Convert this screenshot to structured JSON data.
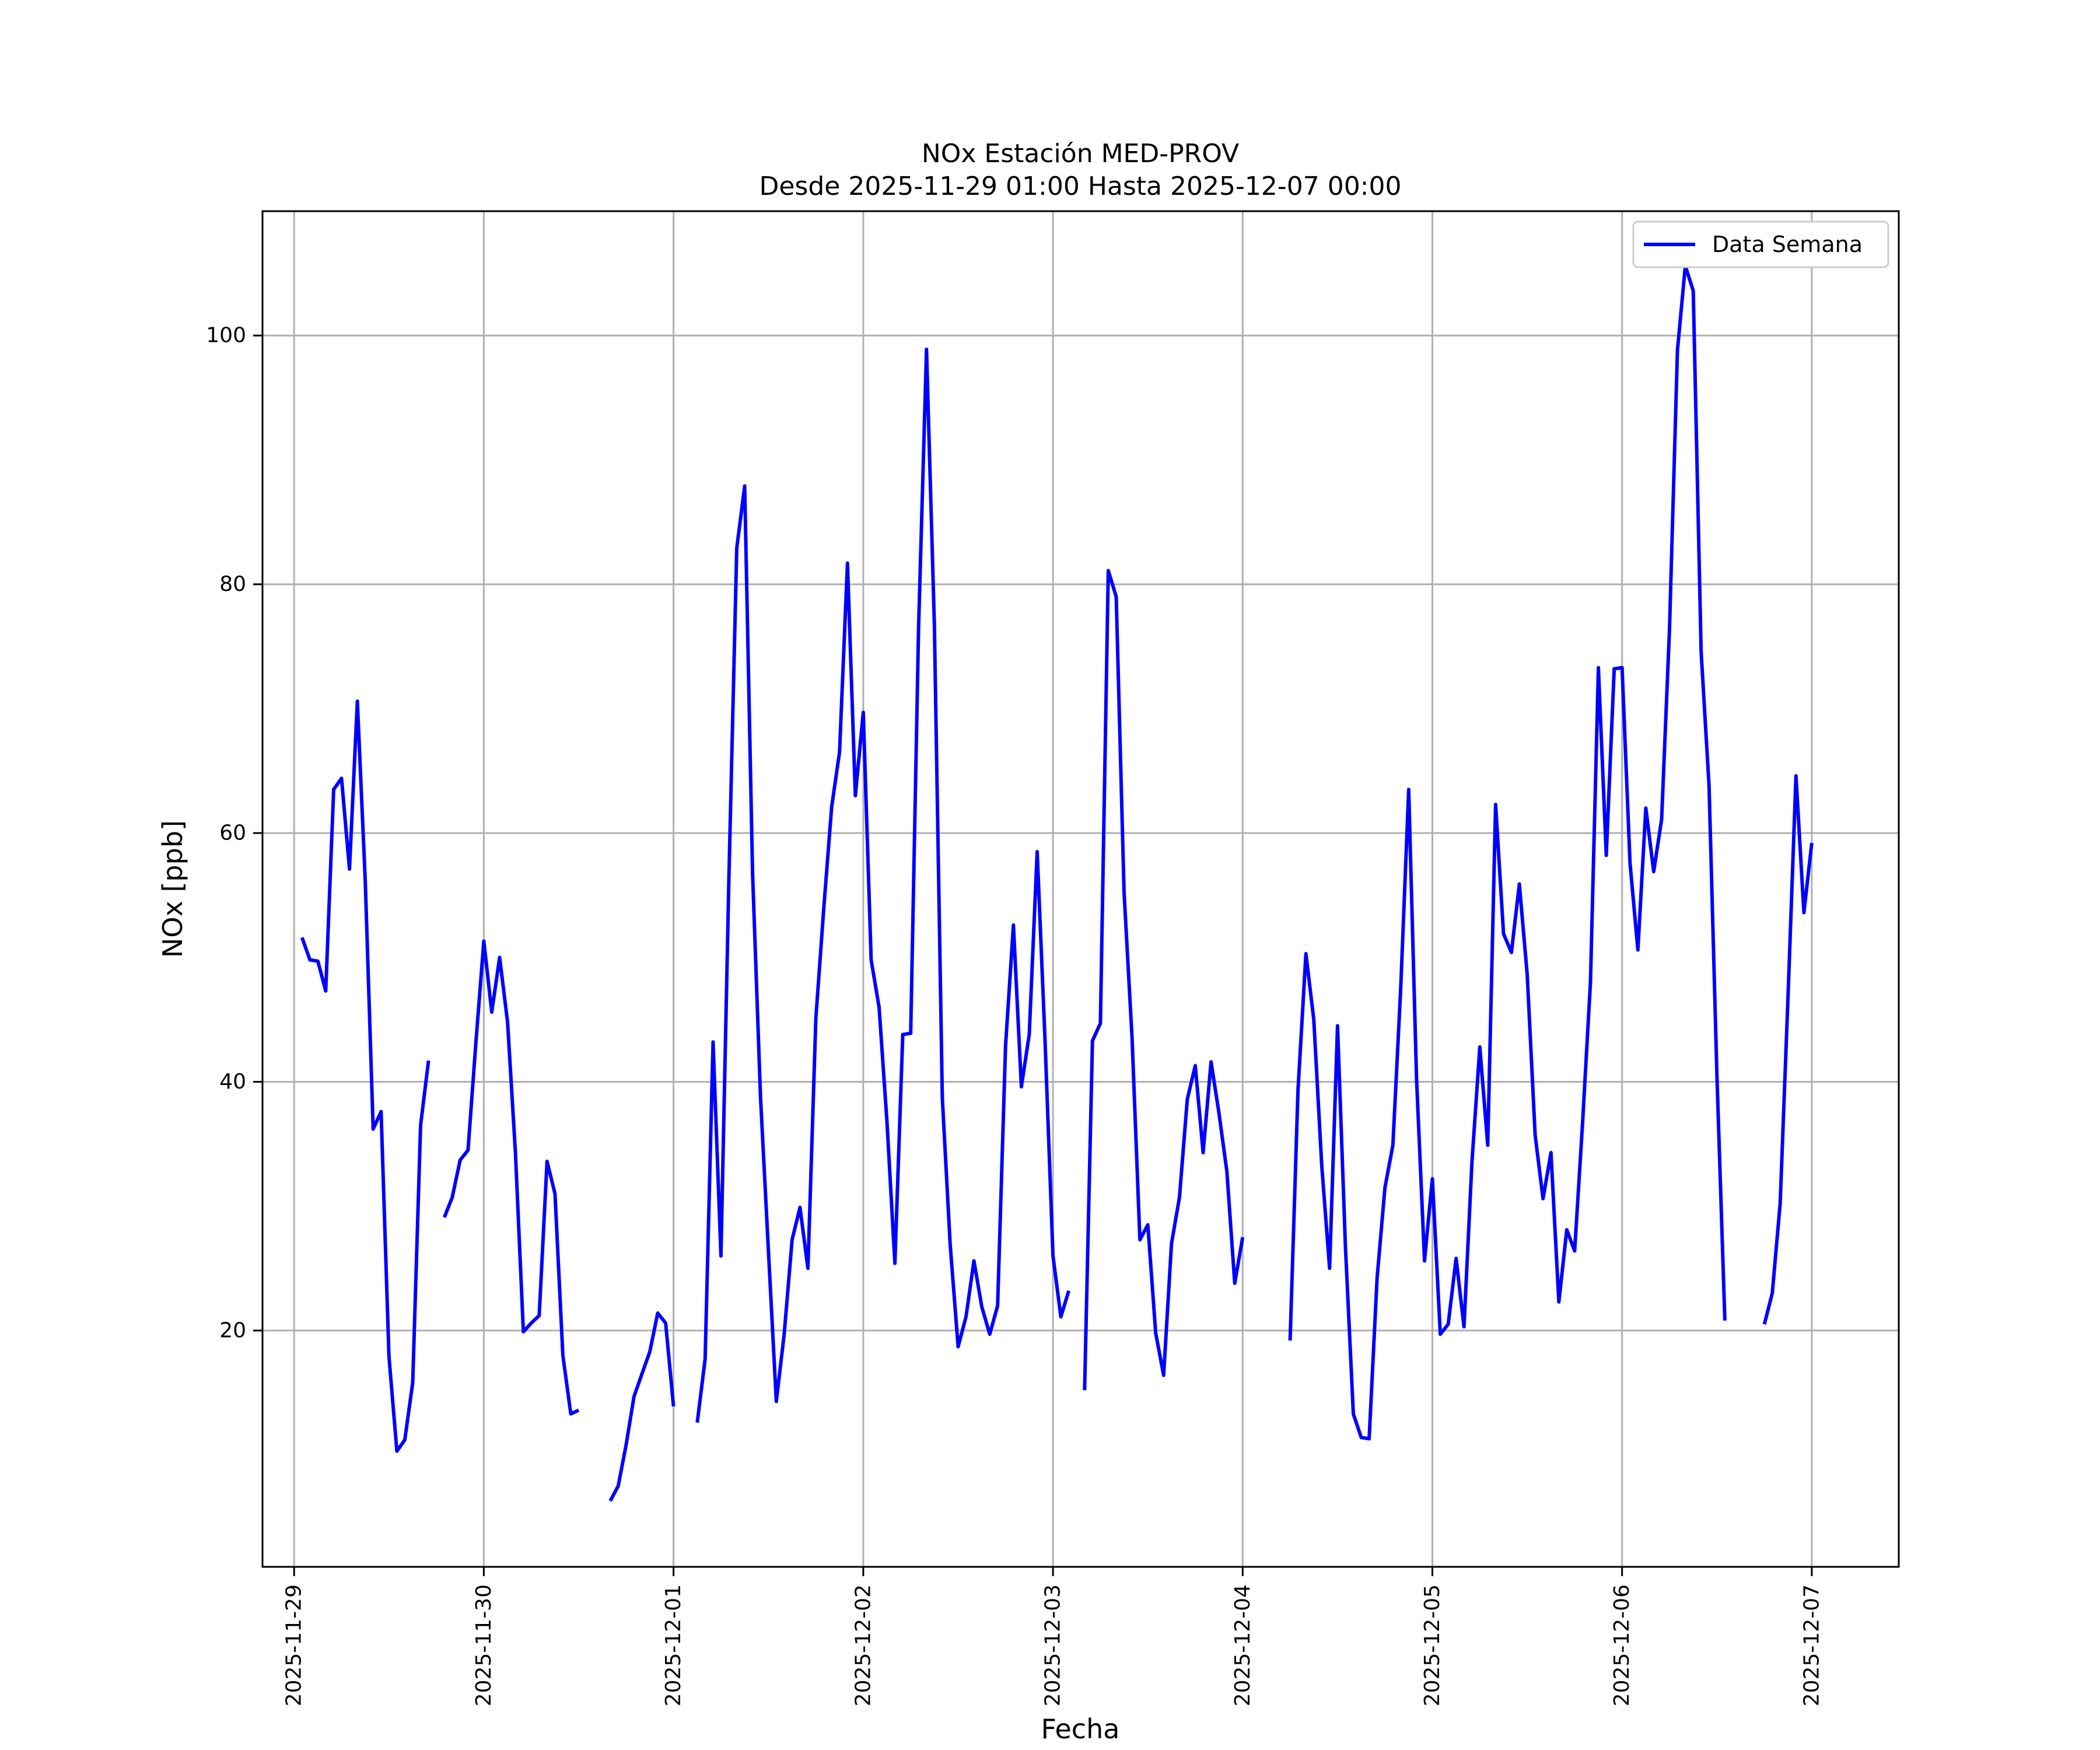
{
  "chart_data": {
    "type": "line",
    "title": "NOx Estación MED-PROV",
    "subtitle": "Desde 2025-11-29 01:00 Hasta 2025-12-07 00:00",
    "xlabel": "Fecha",
    "ylabel": "NOx [ppb]",
    "xlim": [
      "2025-11-28 20:00",
      "2025-12-07 11:00"
    ],
    "ylim": [
      1,
      110
    ],
    "x_ticks": [
      "2025-11-29",
      "2025-11-30",
      "2025-12-01",
      "2025-12-02",
      "2025-12-03",
      "2025-12-04",
      "2025-12-05",
      "2025-12-06",
      "2025-12-07"
    ],
    "y_ticks": [
      20,
      40,
      60,
      80,
      100
    ],
    "grid": true,
    "legend_position": "top-right",
    "colors": {
      "series": "#0000ff"
    },
    "series": [
      {
        "name": "Data Semana",
        "segments": [
          [
            [
              "2025-11-29 01:00",
              51.6
            ],
            [
              "2025-11-29 02:00",
              49.8
            ],
            [
              "2025-11-29 03:00",
              49.7
            ],
            [
              "2025-11-29 04:00",
              47.3
            ],
            [
              "2025-11-29 05:00",
              63.5
            ],
            [
              "2025-11-29 06:00",
              64.4
            ],
            [
              "2025-11-29 07:00",
              57.1
            ],
            [
              "2025-11-29 08:00",
              70.6
            ],
            [
              "2025-11-29 09:00",
              56.1
            ],
            [
              "2025-11-29 10:00",
              36.2
            ],
            [
              "2025-11-29 11:00",
              37.6
            ],
            [
              "2025-11-29 12:00",
              17.9
            ],
            [
              "2025-11-29 13:00",
              10.3
            ],
            [
              "2025-11-29 14:00",
              11.2
            ],
            [
              "2025-11-29 15:00",
              15.8
            ],
            [
              "2025-11-29 16:00",
              36.5
            ],
            [
              "2025-11-29 17:00",
              41.7
            ]
          ],
          [
            [
              "2025-11-29 19:00",
              29.1
            ],
            [
              "2025-11-29 20:00",
              30.7
            ],
            [
              "2025-11-29 21:00",
              33.7
            ],
            [
              "2025-11-29 22:00",
              34.5
            ],
            [
              "2025-11-29 23:00",
              43.2
            ],
            [
              "2025-11-30 00:00",
              51.3
            ],
            [
              "2025-11-30 01:00",
              45.6
            ],
            [
              "2025-11-30 02:00",
              50.0
            ],
            [
              "2025-11-30 03:00",
              44.8
            ],
            [
              "2025-11-30 04:00",
              34.3
            ],
            [
              "2025-11-30 05:00",
              19.9
            ],
            [
              "2025-11-30 06:00",
              20.6
            ],
            [
              "2025-11-30 07:00",
              21.2
            ],
            [
              "2025-11-30 08:00",
              33.6
            ],
            [
              "2025-11-30 09:00",
              31.0
            ],
            [
              "2025-11-30 10:00",
              18.0
            ],
            [
              "2025-11-30 11:00",
              13.3
            ],
            [
              "2025-11-30 12:00",
              13.6
            ]
          ],
          [
            [
              "2025-11-30 16:00",
              6.3
            ],
            [
              "2025-11-30 17:00",
              7.5
            ],
            [
              "2025-11-30 18:00",
              10.8
            ],
            [
              "2025-11-30 19:00",
              14.7
            ],
            [
              "2025-11-30 20:00",
              16.5
            ],
            [
              "2025-11-30 21:00",
              18.3
            ],
            [
              "2025-11-30 22:00",
              21.4
            ],
            [
              "2025-11-30 23:00",
              20.6
            ],
            [
              "2025-12-01 00:00",
              13.9
            ]
          ],
          [
            [
              "2025-12-01 03:00",
              12.6
            ],
            [
              "2025-12-01 04:00",
              17.7
            ],
            [
              "2025-12-01 05:00",
              43.2
            ],
            [
              "2025-12-01 06:00",
              26.0
            ],
            [
              "2025-12-01 07:00",
              56.3
            ],
            [
              "2025-12-01 08:00",
              82.9
            ],
            [
              "2025-12-01 09:00",
              87.9
            ],
            [
              "2025-12-01 10:00",
              56.8
            ],
            [
              "2025-12-01 11:00",
              38.8
            ],
            [
              "2025-12-01 12:00",
              26.5
            ],
            [
              "2025-12-01 13:00",
              14.3
            ],
            [
              "2025-12-01 14:00",
              19.7
            ],
            [
              "2025-12-01 15:00",
              27.3
            ],
            [
              "2025-12-01 16:00",
              29.9
            ],
            [
              "2025-12-01 17:00",
              25.0
            ],
            [
              "2025-12-01 18:00",
              45.1
            ],
            [
              "2025-12-01 19:00",
              53.9
            ],
            [
              "2025-12-01 20:00",
              62.1
            ],
            [
              "2025-12-01 21:00",
              66.5
            ],
            [
              "2025-12-01 22:00",
              81.7
            ],
            [
              "2025-12-01 23:00",
              63.0
            ],
            [
              "2025-12-02 00:00",
              69.7
            ],
            [
              "2025-12-02 01:00",
              49.8
            ],
            [
              "2025-12-02 02:00",
              46.0
            ],
            [
              "2025-12-02 03:00",
              36.8
            ],
            [
              "2025-12-02 04:00",
              25.4
            ],
            [
              "2025-12-02 05:00",
              43.8
            ],
            [
              "2025-12-02 06:00",
              43.9
            ],
            [
              "2025-12-02 07:00",
              76.5
            ],
            [
              "2025-12-02 08:00",
              98.9
            ],
            [
              "2025-12-02 09:00",
              76.7
            ],
            [
              "2025-12-02 10:00",
              38.7
            ],
            [
              "2025-12-02 11:00",
              26.9
            ],
            [
              "2025-12-02 12:00",
              18.7
            ],
            [
              "2025-12-02 13:00",
              21.1
            ],
            [
              "2025-12-02 14:00",
              25.6
            ],
            [
              "2025-12-02 15:00",
              21.9
            ],
            [
              "2025-12-02 16:00",
              19.7
            ],
            [
              "2025-12-02 17:00",
              22.0
            ],
            [
              "2025-12-02 18:00",
              42.9
            ],
            [
              "2025-12-02 19:00",
              52.6
            ],
            [
              "2025-12-02 20:00",
              39.6
            ],
            [
              "2025-12-02 21:00",
              43.8
            ],
            [
              "2025-12-02 22:00",
              58.5
            ],
            [
              "2025-12-02 23:00",
              43.3
            ],
            [
              "2025-12-03 00:00",
              26.0
            ],
            [
              "2025-12-03 01:00",
              21.1
            ],
            [
              "2025-12-03 02:00",
              23.2
            ]
          ],
          [
            [
              "2025-12-03 04:00",
              15.2
            ],
            [
              "2025-12-03 05:00",
              43.3
            ],
            [
              "2025-12-03 06:00",
              44.7
            ],
            [
              "2025-12-03 07:00",
              81.1
            ],
            [
              "2025-12-03 08:00",
              79.0
            ],
            [
              "2025-12-03 09:00",
              55.2
            ],
            [
              "2025-12-03 10:00",
              43.6
            ],
            [
              "2025-12-03 11:00",
              27.3
            ],
            [
              "2025-12-03 12:00",
              28.5
            ],
            [
              "2025-12-03 13:00",
              19.8
            ],
            [
              "2025-12-03 14:00",
              16.4
            ],
            [
              "2025-12-03 15:00",
              27.0
            ],
            [
              "2025-12-03 16:00",
              30.7
            ],
            [
              "2025-12-03 17:00",
              38.6
            ],
            [
              "2025-12-03 18:00",
              41.3
            ],
            [
              "2025-12-03 19:00",
              34.3
            ],
            [
              "2025-12-03 20:00",
              41.6
            ],
            [
              "2025-12-03 21:00",
              37.5
            ],
            [
              "2025-12-03 22:00",
              32.8
            ],
            [
              "2025-12-03 23:00",
              23.8
            ],
            [
              "2025-12-04 00:00",
              27.5
            ]
          ],
          [
            [
              "2025-12-04 06:00",
              19.2
            ],
            [
              "2025-12-04 07:00",
              39.3
            ],
            [
              "2025-12-04 08:00",
              50.3
            ],
            [
              "2025-12-04 09:00",
              45.0
            ],
            [
              "2025-12-04 10:00",
              33.3
            ],
            [
              "2025-12-04 11:00",
              25.0
            ],
            [
              "2025-12-04 12:00",
              44.5
            ],
            [
              "2025-12-04 13:00",
              26.8
            ],
            [
              "2025-12-04 14:00",
              13.3
            ],
            [
              "2025-12-04 15:00",
              11.4
            ],
            [
              "2025-12-04 16:00",
              11.3
            ],
            [
              "2025-12-04 17:00",
              24.2
            ],
            [
              "2025-12-04 18:00",
              31.5
            ],
            [
              "2025-12-04 19:00",
              34.9
            ],
            [
              "2025-12-04 20:00",
              47.6
            ],
            [
              "2025-12-04 21:00",
              63.5
            ],
            [
              "2025-12-04 22:00",
              40.2
            ],
            [
              "2025-12-04 23:00",
              25.6
            ],
            [
              "2025-12-05 00:00",
              32.2
            ],
            [
              "2025-12-05 01:00",
              19.7
            ],
            [
              "2025-12-05 02:00",
              20.5
            ],
            [
              "2025-12-05 03:00",
              25.8
            ],
            [
              "2025-12-05 04:00",
              20.3
            ],
            [
              "2025-12-05 05:00",
              33.5
            ],
            [
              "2025-12-05 06:00",
              42.8
            ],
            [
              "2025-12-05 07:00",
              34.9
            ],
            [
              "2025-12-05 08:00",
              62.3
            ],
            [
              "2025-12-05 09:00",
              51.9
            ],
            [
              "2025-12-05 10:00",
              50.4
            ],
            [
              "2025-12-05 11:00",
              55.9
            ],
            [
              "2025-12-05 12:00",
              48.6
            ],
            [
              "2025-12-05 13:00",
              35.7
            ],
            [
              "2025-12-05 14:00",
              30.6
            ],
            [
              "2025-12-05 15:00",
              34.3
            ],
            [
              "2025-12-05 16:00",
              22.3
            ],
            [
              "2025-12-05 17:00",
              28.1
            ],
            [
              "2025-12-05 18:00",
              26.4
            ],
            [
              "2025-12-05 19:00",
              36.7
            ],
            [
              "2025-12-05 20:00",
              48.0
            ],
            [
              "2025-12-05 21:00",
              73.3
            ],
            [
              "2025-12-05 22:00",
              58.2
            ],
            [
              "2025-12-05 23:00",
              73.2
            ],
            [
              "2025-12-06 00:00",
              73.3
            ],
            [
              "2025-12-06 01:00",
              57.6
            ],
            [
              "2025-12-06 02:00",
              50.6
            ],
            [
              "2025-12-06 03:00",
              62.0
            ],
            [
              "2025-12-06 04:00",
              56.9
            ],
            [
              "2025-12-06 05:00",
              61.1
            ],
            [
              "2025-12-06 06:00",
              76.4
            ],
            [
              "2025-12-06 07:00",
              98.8
            ],
            [
              "2025-12-06 08:00",
              105.6
            ],
            [
              "2025-12-06 09:00",
              103.6
            ],
            [
              "2025-12-06 10:00",
              74.6
            ],
            [
              "2025-12-06 11:00",
              63.8
            ],
            [
              "2025-12-06 12:00",
              40.5
            ],
            [
              "2025-12-06 13:00",
              20.8
            ]
          ],
          [
            [
              "2025-12-06 18:00",
              20.5
            ],
            [
              "2025-12-06 19:00",
              23.0
            ],
            [
              "2025-12-06 20:00",
              30.2
            ],
            [
              "2025-12-06 21:00",
              47.0
            ],
            [
              "2025-12-06 22:00",
              64.6
            ],
            [
              "2025-12-06 23:00",
              53.6
            ],
            [
              "2025-12-07 00:00",
              59.2
            ]
          ]
        ]
      }
    ]
  }
}
